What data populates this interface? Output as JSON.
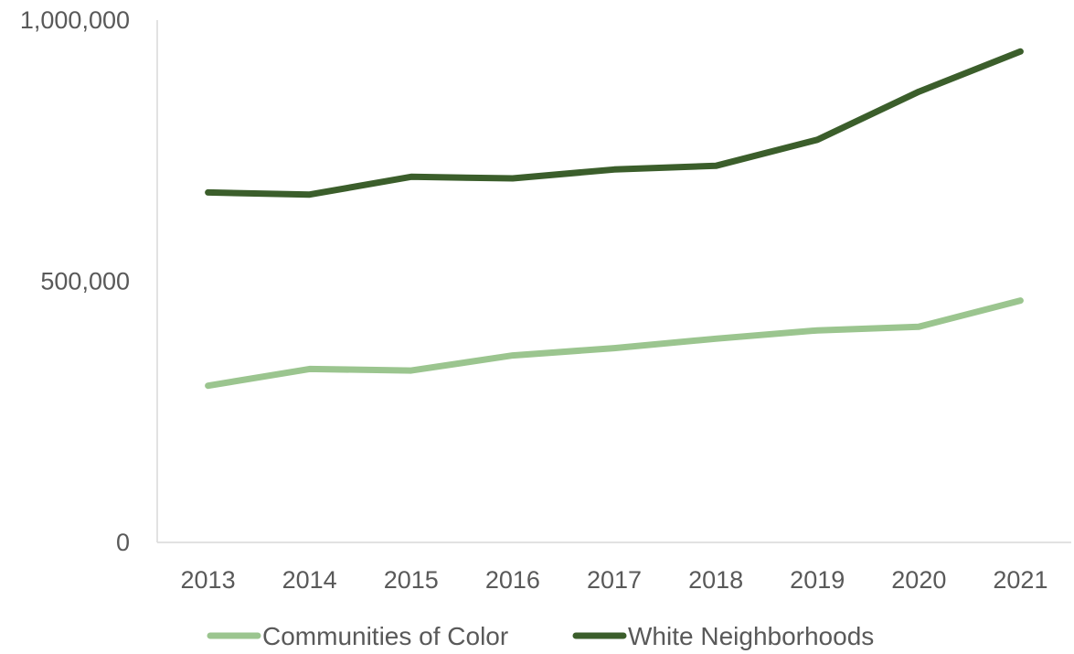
{
  "chart_data": {
    "type": "line",
    "categories": [
      "2013",
      "2014",
      "2015",
      "2016",
      "2017",
      "2018",
      "2019",
      "2020",
      "2021"
    ],
    "series": [
      {
        "name": "Communities of Color",
        "color": "#9bc58f",
        "values": [
          300000,
          332000,
          329000,
          358000,
          372000,
          390000,
          406000,
          413000,
          463000
        ]
      },
      {
        "name": "White Neighborhoods",
        "color": "#3b5e2b",
        "values": [
          670000,
          666000,
          700000,
          697000,
          714000,
          721000,
          771000,
          863000,
          940000
        ]
      }
    ],
    "y_ticks": [
      "0",
      "500,000",
      "1,000,000"
    ],
    "y_tick_values": [
      0,
      500000,
      1000000
    ],
    "ylim": [
      0,
      1000000
    ],
    "title": "",
    "xlabel": "",
    "ylabel": "",
    "grid": false,
    "legend_position": "bottom",
    "axis_color": "#d9d9d9",
    "text_color": "#595959"
  }
}
